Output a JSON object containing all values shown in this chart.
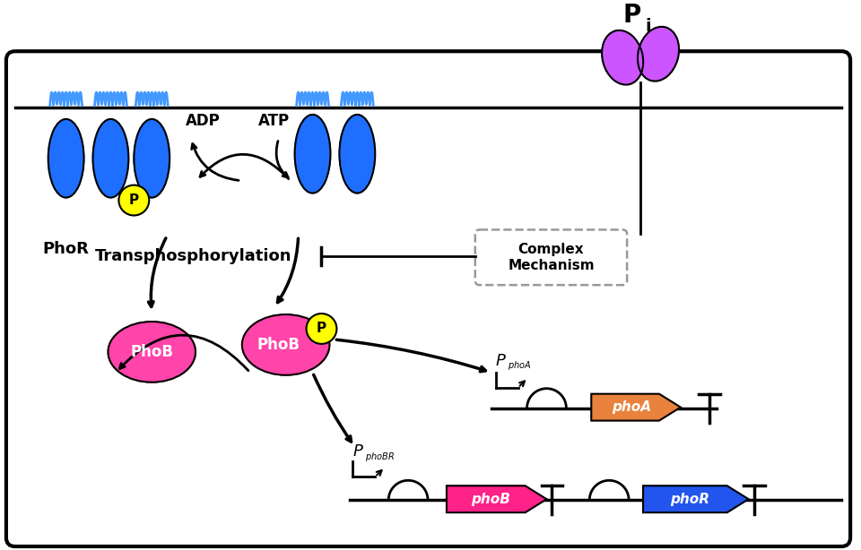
{
  "bg_color": "#ffffff",
  "blue_ellipse_color": "#1E6FFF",
  "blue_wave_color": "#4499FF",
  "yellow_circle_color": "#FFFF00",
  "phob_color": "#FF44AA",
  "purple_color": "#CC55FF",
  "phoa_gene_color": "#E8823C",
  "phob_gene_color": "#FF2288",
  "phor_gene_color": "#2255EE",
  "phor_label": "PhoR",
  "phob_label": "PhoB",
  "p_label": "P",
  "adp_label": "ADP",
  "atp_label": "ATP",
  "transphosphorylation_label": "Transphosphorylation",
  "complex_mechanism_label": "Complex\nMechanism",
  "phoa_gene_label": "phoA",
  "phob_gene_label": "phoB",
  "phor_gene_label": "phoR"
}
